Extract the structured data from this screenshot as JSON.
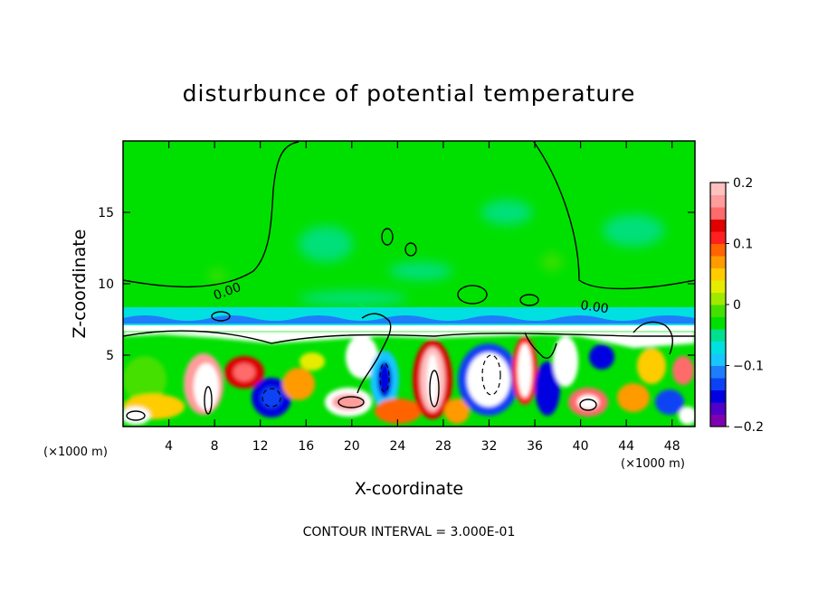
{
  "chart_data": {
    "type": "heatmap",
    "title": "disturbunce of potential temperature",
    "xlabel": "X-coordinate",
    "ylabel": "Z-coordinate",
    "x_unit_label": "(×1000 m)",
    "x_ticks": [
      "4",
      "8",
      "12",
      "16",
      "20",
      "24",
      "28",
      "32",
      "36",
      "40",
      "44",
      "48"
    ],
    "y_ticks": [
      "5",
      "10",
      "15"
    ],
    "xlim": [
      0,
      50
    ],
    "ylim": [
      0,
      20
    ],
    "contour_labels": [
      "0.00",
      "0.00"
    ],
    "colorbar": {
      "ticks": [
        "0.2",
        "0.1",
        "0",
        "−0.1",
        "−0.2"
      ],
      "range": [
        -0.2,
        0.2
      ],
      "colors": [
        "#7f00b2",
        "#5000c8",
        "#0000e0",
        "#0b42f5",
        "#1f7dfb",
        "#17c6ff",
        "#00e0e0",
        "#00e090",
        "#00e000",
        "#44e000",
        "#a0ea00",
        "#e6ec00",
        "#ffcc00",
        "#ff9a00",
        "#ff6400",
        "#ff2020",
        "#e00000",
        "#ff6a6a",
        "#ff9c9c",
        "#ffc0c0"
      ]
    },
    "footer": "CONTOUR INTERVAL = 3.000E-01",
    "grid": false
  }
}
